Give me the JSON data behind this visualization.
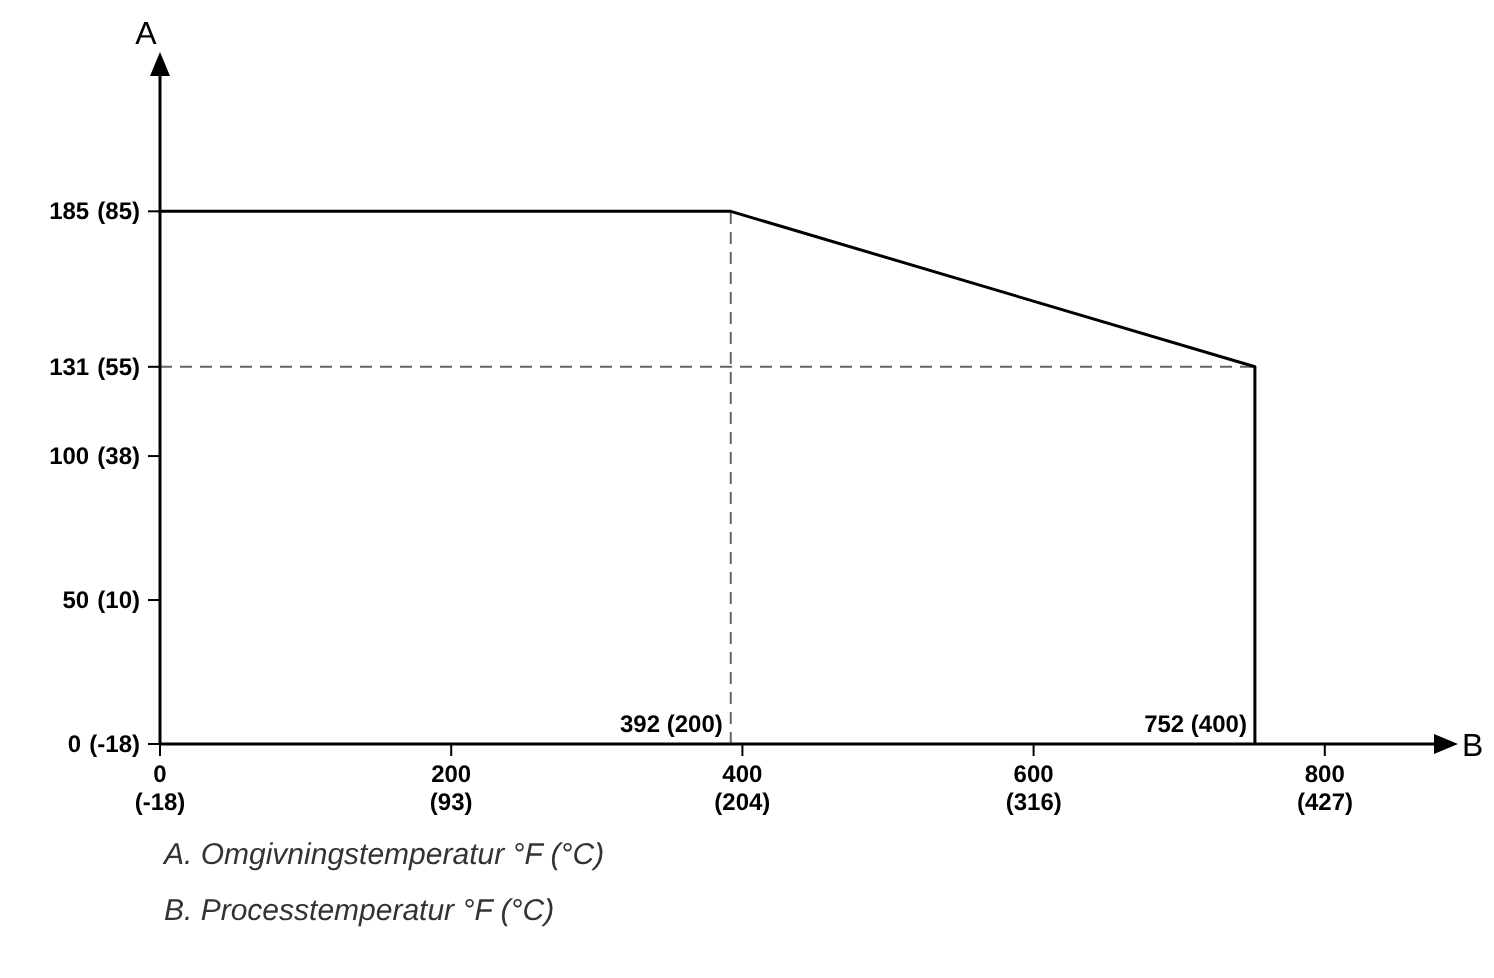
{
  "chart_data": {
    "type": "line",
    "xlabel": "B",
    "y2label": "A",
    "xlim": [
      0,
      875
    ],
    "ylim": [
      0,
      232
    ],
    "xticks": [
      0,
      200,
      400,
      600,
      800
    ],
    "yticks": [
      0,
      50,
      100,
      131,
      185
    ],
    "x2lim": [
      -17.8,
      468.3
    ],
    "x2ticks": [
      {
        "value": -17.8,
        "label": "(-18)"
      },
      {
        "value": 93.3,
        "label": "(93)"
      },
      {
        "value": 204.4,
        "label": "(204)"
      },
      {
        "value": 315.6,
        "label": "(316)"
      },
      {
        "value": 426.7,
        "label": "(427)"
      }
    ],
    "y2lim": [
      -17.8,
      111.1
    ],
    "y2ticks": [
      {
        "value": -17.8,
        "label": "(-18)"
      },
      {
        "value": 10,
        "label": "(10)"
      },
      {
        "value": 37.8,
        "label": "(38)"
      },
      {
        "value": 55,
        "label": "(55)"
      },
      {
        "value": 85,
        "label": "(85)"
      }
    ],
    "series": [
      {
        "color": "#000000",
        "x": [
          0,
          392,
          752,
          752
        ],
        "values": [
          185,
          185,
          131,
          0
        ]
      }
    ],
    "ref_lines": [
      {
        "axis": "x",
        "value": 392,
        "label": "392 (200)",
        "color": "#666666",
        "line_style": "dashed"
      },
      {
        "axis": "y",
        "value": 131,
        "label": null,
        "color": "#666666",
        "line_style": "dashed"
      }
    ],
    "annotations": [
      {
        "text": "752 (400)",
        "x": 752,
        "y": 0
      },
      "A.  Omgivningstemperatur °F (°C)",
      "B.  Processtemperatur °F (°C)"
    ]
  }
}
